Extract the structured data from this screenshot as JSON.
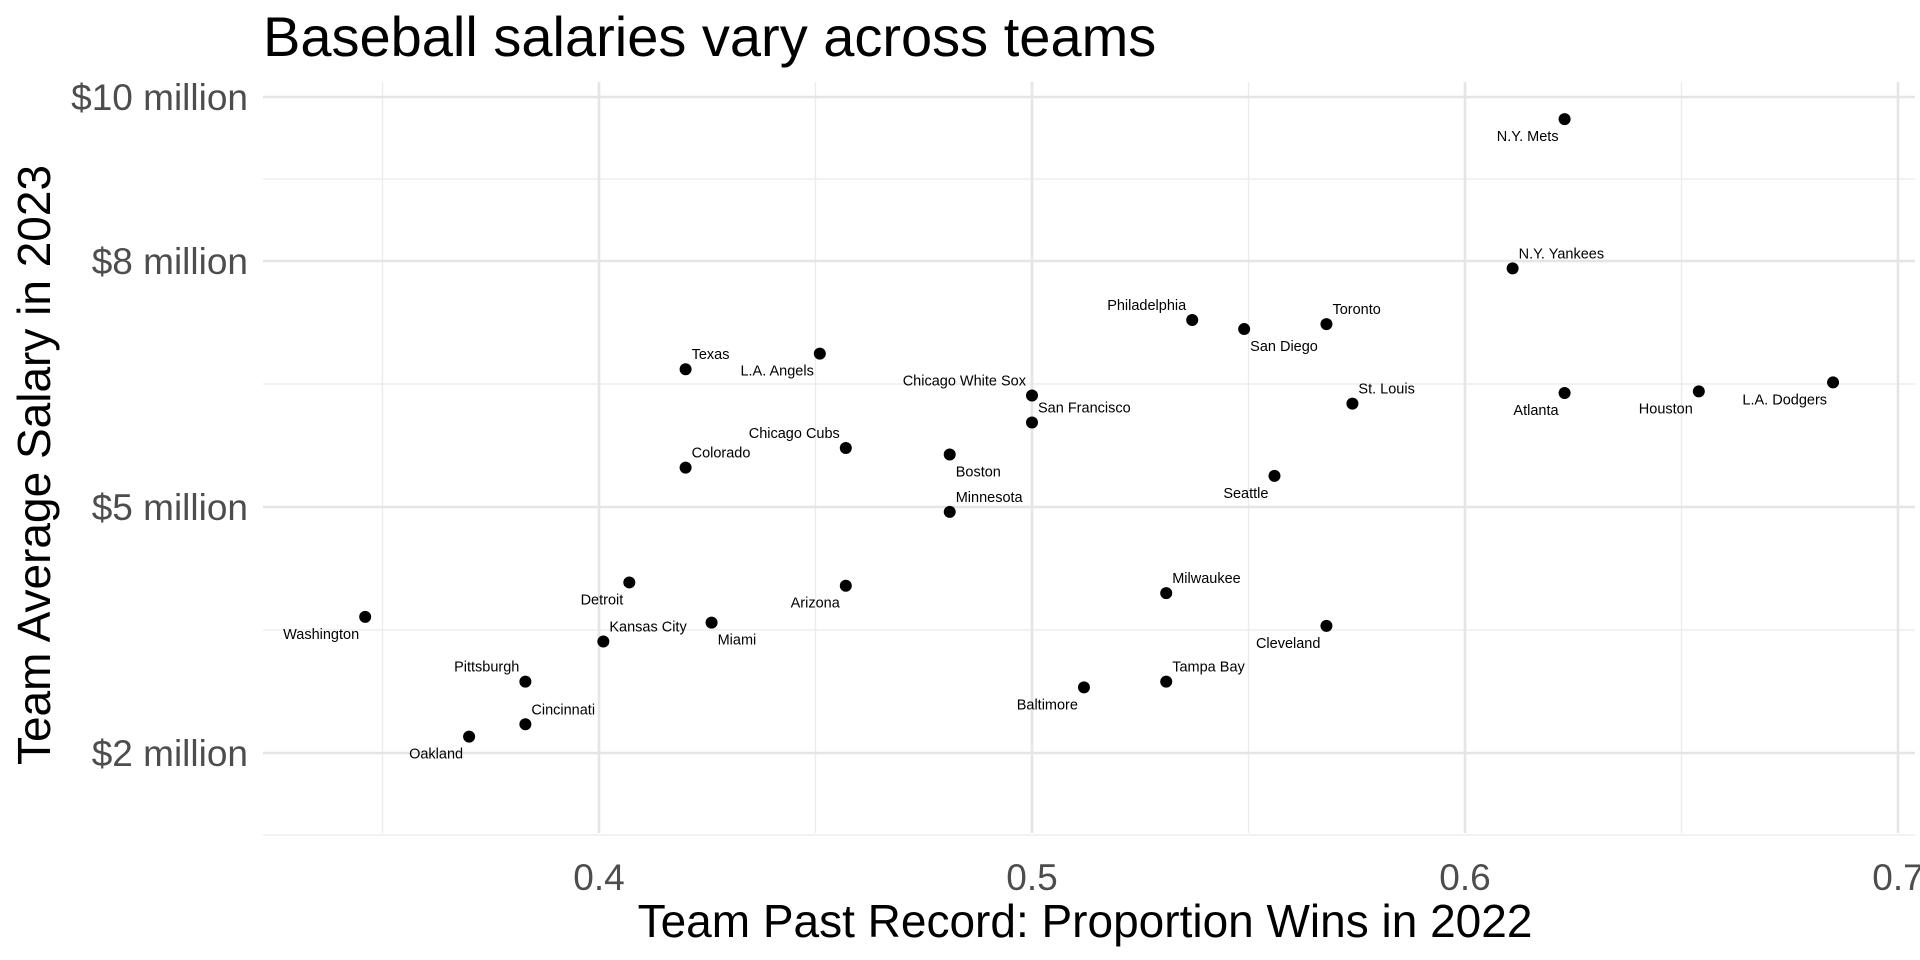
{
  "chart_data": {
    "type": "scatter",
    "title": "Baseball salaries vary across teams",
    "xlabel": "Team Past Record: Proportion Wins in 2022",
    "ylabel": "Team Average Salary in 2023",
    "xlim": [
      0.33,
      0.7
    ],
    "ylim": [
      0.6,
      10.6
    ],
    "x_ticks": [
      0.4,
      0.5,
      0.6,
      0.7
    ],
    "x_tick_labels": [
      "0.4",
      "0.5",
      "0.6",
      "0.7"
    ],
    "y_ticks": [
      2,
      5,
      8,
      10
    ],
    "y_tick_labels": [
      "$2 million",
      "$5 million",
      "$8 million",
      "$10 million"
    ],
    "y_unit": "million dollars",
    "grid": true,
    "point_color": "#000000",
    "points": [
      {
        "label": "N.Y. Mets",
        "x": 0.623,
        "y": 9.73,
        "pos": "bl"
      },
      {
        "label": "N.Y. Yankees",
        "x": 0.611,
        "y": 7.91,
        "pos": "tr"
      },
      {
        "label": "Philadelphia",
        "x": 0.537,
        "y": 7.28,
        "pos": "tl"
      },
      {
        "label": "San Diego",
        "x": 0.549,
        "y": 7.17,
        "pos": "br"
      },
      {
        "label": "Toronto",
        "x": 0.568,
        "y": 7.23,
        "pos": "tr"
      },
      {
        "label": "L.A. Angels",
        "x": 0.451,
        "y": 6.87,
        "pos": "bl"
      },
      {
        "label": "Texas",
        "x": 0.42,
        "y": 6.68,
        "pos": "tr"
      },
      {
        "label": "L.A. Dodgers",
        "x": 0.685,
        "y": 6.52,
        "pos": "bl"
      },
      {
        "label": "Chicago White Sox",
        "x": 0.5,
        "y": 6.36,
        "pos": "tl"
      },
      {
        "label": "Atlanta",
        "x": 0.623,
        "y": 6.39,
        "pos": "bl"
      },
      {
        "label": "Houston",
        "x": 0.654,
        "y": 6.41,
        "pos": "bl"
      },
      {
        "label": "St. Louis",
        "x": 0.574,
        "y": 6.26,
        "pos": "tr"
      },
      {
        "label": "San Francisco",
        "x": 0.5,
        "y": 6.03,
        "pos": "tr"
      },
      {
        "label": "Chicago Cubs",
        "x": 0.457,
        "y": 5.72,
        "pos": "tl"
      },
      {
        "label": "Boston",
        "x": 0.481,
        "y": 5.64,
        "pos": "br"
      },
      {
        "label": "Colorado",
        "x": 0.42,
        "y": 5.48,
        "pos": "tr"
      },
      {
        "label": "Seattle",
        "x": 0.556,
        "y": 5.38,
        "pos": "bl"
      },
      {
        "label": "Minnesota",
        "x": 0.481,
        "y": 4.94,
        "pos": "tr"
      },
      {
        "label": "Detroit",
        "x": 0.407,
        "y": 4.08,
        "pos": "bl"
      },
      {
        "label": "Arizona",
        "x": 0.457,
        "y": 4.04,
        "pos": "bl"
      },
      {
        "label": "Milwaukee",
        "x": 0.531,
        "y": 3.95,
        "pos": "tr"
      },
      {
        "label": "Washington",
        "x": 0.346,
        "y": 3.66,
        "pos": "bl"
      },
      {
        "label": "Miami",
        "x": 0.426,
        "y": 3.59,
        "pos": "br"
      },
      {
        "label": "Cleveland",
        "x": 0.568,
        "y": 3.55,
        "pos": "bl"
      },
      {
        "label": "Kansas City",
        "x": 0.401,
        "y": 3.36,
        "pos": "tr"
      },
      {
        "label": "Pittsburgh",
        "x": 0.383,
        "y": 2.87,
        "pos": "tl"
      },
      {
        "label": "Tampa Bay",
        "x": 0.531,
        "y": 2.87,
        "pos": "tr"
      },
      {
        "label": "Baltimore",
        "x": 0.512,
        "y": 2.8,
        "pos": "bl"
      },
      {
        "label": "Cincinnati",
        "x": 0.383,
        "y": 2.35,
        "pos": "tr"
      },
      {
        "label": "Oakland",
        "x": 0.37,
        "y": 2.2,
        "pos": "bl"
      }
    ]
  }
}
